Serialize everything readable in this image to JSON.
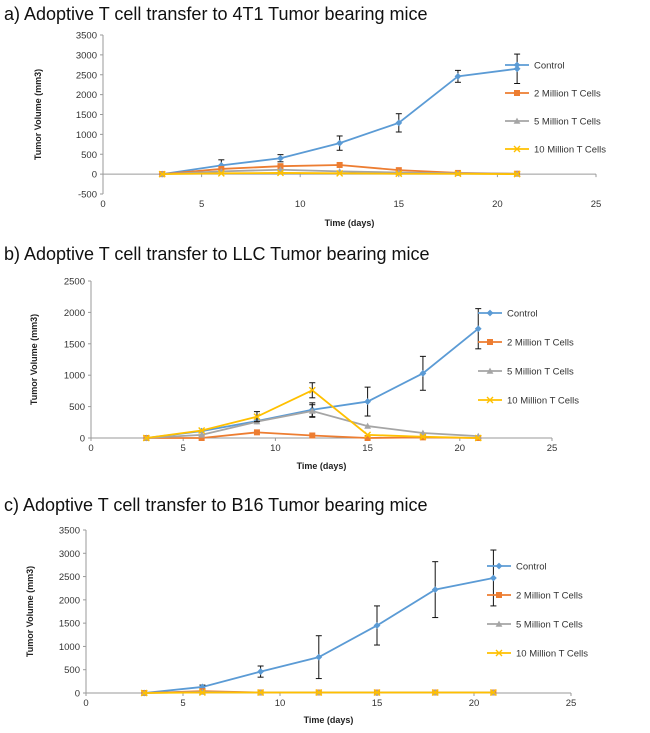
{
  "chart_data": [
    {
      "type": "line",
      "panel_title": "a) Adoptive T cell transfer to 4T1 Tumor bearing mice",
      "xlabel": "Time (days)",
      "ylabel": "Tumor Volume (mm3)",
      "xlim": [
        0,
        25
      ],
      "ylim": [
        -500,
        3500
      ],
      "xticks": [
        0,
        5,
        10,
        15,
        20,
        25
      ],
      "yticks": [
        -500,
        0,
        500,
        1000,
        1500,
        2000,
        2500,
        3000,
        3500
      ],
      "x": [
        3,
        6,
        9,
        12,
        15,
        18,
        21
      ],
      "series": [
        {
          "name": "Control",
          "color": "#5b9bd5",
          "marker": "diamond",
          "values": [
            0,
            220,
            400,
            780,
            1290,
            2460,
            2650
          ],
          "errors": [
            0,
            140,
            90,
            180,
            230,
            150,
            370
          ]
        },
        {
          "name": "2 Million T Cells",
          "color": "#ed7d31",
          "marker": "square",
          "values": [
            0,
            130,
            200,
            230,
            100,
            30,
            10
          ],
          "errors": [
            0,
            0,
            0,
            0,
            0,
            0,
            0
          ]
        },
        {
          "name": "5 Million T Cells",
          "color": "#a5a5a5",
          "marker": "triangle",
          "values": [
            0,
            70,
            110,
            70,
            40,
            20,
            10
          ],
          "errors": [
            0,
            0,
            0,
            0,
            0,
            0,
            0
          ]
        },
        {
          "name": "10 Million T Cells",
          "color": "#ffc000",
          "marker": "x",
          "values": [
            0,
            20,
            30,
            20,
            10,
            10,
            0
          ],
          "errors": [
            0,
            0,
            0,
            0,
            0,
            0,
            0
          ]
        }
      ]
    },
    {
      "type": "line",
      "panel_title": "b) Adoptive T cell transfer to LLC Tumor bearing mice",
      "xlabel": "Time (days)",
      "ylabel": "Tumor Volume (mm3)",
      "xlim": [
        0,
        25
      ],
      "ylim": [
        0,
        2500
      ],
      "xticks": [
        0,
        5,
        10,
        15,
        20,
        25
      ],
      "yticks": [
        0,
        500,
        1000,
        1500,
        2000,
        2500
      ],
      "x": [
        3,
        6,
        9,
        12,
        15,
        18,
        21
      ],
      "series": [
        {
          "name": "Control",
          "color": "#5b9bd5",
          "marker": "diamond",
          "values": [
            0,
            110,
            270,
            450,
            580,
            1030,
            1740
          ],
          "errors": [
            0,
            0,
            0,
            110,
            230,
            270,
            320
          ]
        },
        {
          "name": "2 Million T Cells",
          "color": "#ed7d31",
          "marker": "square",
          "values": [
            0,
            0,
            90,
            40,
            0,
            10,
            0
          ],
          "errors": [
            0,
            0,
            0,
            0,
            0,
            0,
            0
          ]
        },
        {
          "name": "5 Million T Cells",
          "color": "#a5a5a5",
          "marker": "triangle",
          "values": [
            0,
            50,
            260,
            430,
            190,
            80,
            30
          ],
          "errors": [
            0,
            0,
            0,
            100,
            0,
            0,
            0
          ]
        },
        {
          "name": "10 Million T Cells",
          "color": "#ffc000",
          "marker": "x",
          "values": [
            0,
            120,
            340,
            760,
            50,
            20,
            0
          ],
          "errors": [
            0,
            0,
            80,
            120,
            0,
            0,
            0
          ]
        }
      ]
    },
    {
      "type": "line",
      "panel_title": "c) Adoptive T cell transfer to B16 Tumor bearing mice",
      "xlabel": "Time (days)",
      "ylabel": "Tumor Volume (mm3)",
      "xlim": [
        0,
        25
      ],
      "ylim": [
        0,
        3500
      ],
      "xticks": [
        0,
        5,
        10,
        15,
        20,
        25
      ],
      "yticks": [
        0,
        500,
        1000,
        1500,
        2000,
        2500,
        3000,
        3500
      ],
      "x": [
        3,
        6,
        9,
        12,
        15,
        18,
        21
      ],
      "series": [
        {
          "name": "Control",
          "color": "#5b9bd5",
          "marker": "diamond",
          "values": [
            0,
            130,
            460,
            770,
            1450,
            2220,
            2470
          ],
          "errors": [
            0,
            40,
            120,
            460,
            420,
            600,
            600
          ]
        },
        {
          "name": "2 Million T Cells",
          "color": "#ed7d31",
          "marker": "square",
          "values": [
            0,
            40,
            10,
            10,
            10,
            10,
            10
          ],
          "errors": [
            0,
            0,
            0,
            0,
            0,
            0,
            0
          ]
        },
        {
          "name": "5 Million T Cells",
          "color": "#a5a5a5",
          "marker": "triangle",
          "values": [
            0,
            20,
            10,
            10,
            10,
            10,
            10
          ],
          "errors": [
            0,
            0,
            0,
            0,
            0,
            0,
            0
          ]
        },
        {
          "name": "10 Million T Cells",
          "color": "#ffc000",
          "marker": "x",
          "values": [
            0,
            10,
            10,
            10,
            10,
            10,
            10
          ],
          "errors": [
            0,
            0,
            0,
            0,
            0,
            0,
            0
          ]
        }
      ]
    }
  ]
}
